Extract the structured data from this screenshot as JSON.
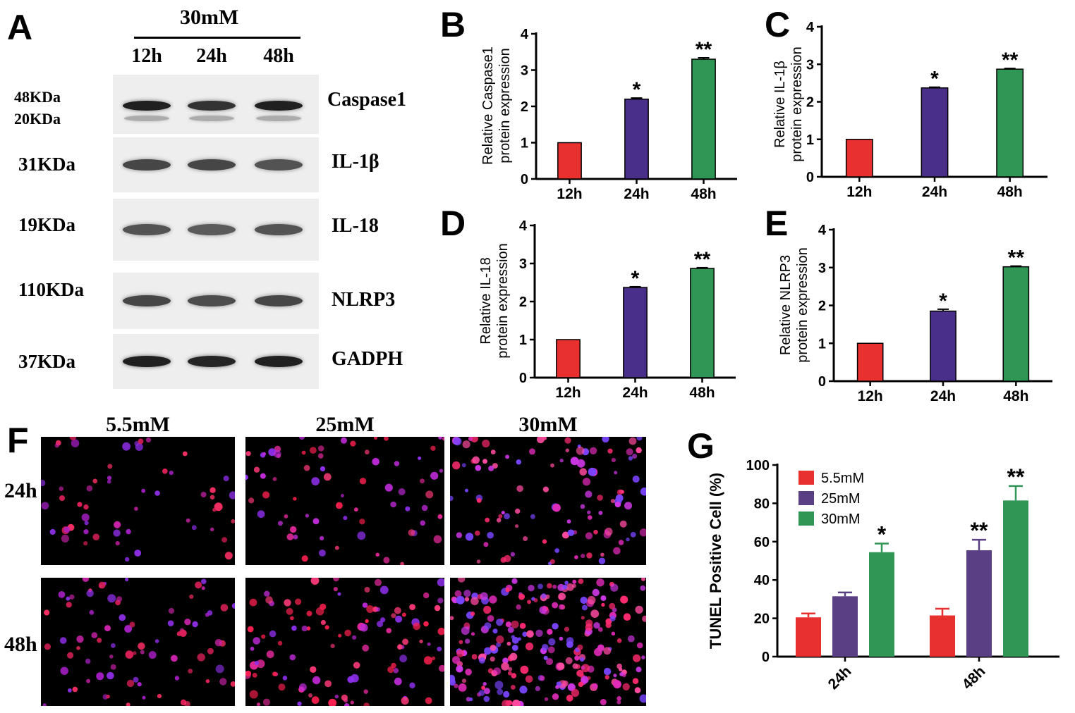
{
  "panel_a": {
    "letter": "A",
    "condition": "30mM",
    "time_labels": [
      "12h",
      "24h",
      "48h"
    ],
    "rows": [
      {
        "kda": [
          "48KDa",
          "20KDa"
        ],
        "protein": "Caspase1",
        "bands": [
          1.0,
          0.85,
          1.0
        ]
      },
      {
        "kda": [
          "31KDa"
        ],
        "protein": "IL-1β",
        "bands": [
          0.7,
          0.7,
          0.6
        ]
      },
      {
        "kda": [
          "19KDa"
        ],
        "protein": "IL-18",
        "bands": [
          0.6,
          0.55,
          0.6
        ]
      },
      {
        "kda": [
          "110KDa"
        ],
        "protein": "NLRP3",
        "bands": [
          0.7,
          0.65,
          0.7
        ]
      },
      {
        "kda": [
          "37KDa"
        ],
        "protein": "GADPH",
        "bands": [
          1.0,
          0.95,
          1.0
        ]
      }
    ]
  },
  "panel_f": {
    "letter": "F",
    "columns": [
      "5.5mM",
      "25mM",
      "30mM"
    ],
    "rows": [
      "24h",
      "48h"
    ]
  },
  "chart_data": [
    {
      "id": "B",
      "type": "bar",
      "categories": [
        "12h",
        "24h",
        "48h"
      ],
      "values": [
        1.0,
        2.2,
        3.3
      ],
      "errors": [
        0,
        0.03,
        0.04
      ],
      "annotations": [
        "",
        "*",
        "**"
      ],
      "ylabel_lines": [
        "Relative Caspase1",
        "protein expression"
      ],
      "ylim": [
        0,
        4
      ],
      "yticks": [
        0,
        1,
        2,
        3,
        4
      ],
      "colors": [
        "#e8312f",
        "#4a2f8a",
        "#2f9656"
      ]
    },
    {
      "id": "C",
      "type": "bar",
      "categories": [
        "12h",
        "24h",
        "48h"
      ],
      "values": [
        1.0,
        2.37,
        2.87
      ],
      "errors": [
        0,
        0.02,
        0.02
      ],
      "annotations": [
        "",
        "*",
        "**"
      ],
      "ylabel_lines": [
        "Relative IL-1β",
        "protein expression"
      ],
      "ylim": [
        0,
        4
      ],
      "yticks": [
        0,
        1,
        2,
        3,
        4
      ],
      "colors": [
        "#e8312f",
        "#4a2f8a",
        "#2f9656"
      ]
    },
    {
      "id": "D",
      "type": "bar",
      "categories": [
        "12h",
        "24h",
        "48h"
      ],
      "values": [
        1.0,
        2.37,
        2.87
      ],
      "errors": [
        0,
        0.02,
        0.02
      ],
      "annotations": [
        "",
        "*",
        "**"
      ],
      "ylabel_lines": [
        "Relative IL-18",
        "protein expression"
      ],
      "ylim": [
        0,
        4
      ],
      "yticks": [
        0,
        1,
        2,
        3,
        4
      ],
      "colors": [
        "#e8312f",
        "#4a2f8a",
        "#2f9656"
      ]
    },
    {
      "id": "E",
      "type": "bar",
      "categories": [
        "12h",
        "24h",
        "48h"
      ],
      "values": [
        1.0,
        1.85,
        3.02
      ],
      "errors": [
        0,
        0.05,
        0.02
      ],
      "annotations": [
        "",
        "*",
        "**"
      ],
      "ylabel_lines": [
        "Relative NLRP3",
        "protein expression"
      ],
      "ylim": [
        0,
        4
      ],
      "yticks": [
        0,
        1,
        2,
        3,
        4
      ],
      "colors": [
        "#e8312f",
        "#4a2f8a",
        "#2f9656"
      ]
    },
    {
      "id": "G",
      "type": "bar",
      "categories": [
        "24h",
        "48h"
      ],
      "series": [
        {
          "name": "5.5mM",
          "values": [
            20.5,
            21.5
          ],
          "errors": [
            2.0,
            3.5
          ],
          "annotations": [
            "",
            ""
          ],
          "color": "#e8312f"
        },
        {
          "name": "25mM",
          "values": [
            31.5,
            55.5
          ],
          "errors": [
            2.0,
            5.5
          ],
          "annotations": [
            "",
            "**"
          ],
          "color": "#5a3f85"
        },
        {
          "name": "30mM",
          "values": [
            54.5,
            81.5
          ],
          "errors": [
            4.5,
            7.5
          ],
          "annotations": [
            "*",
            "**"
          ],
          "color": "#2f9656"
        }
      ],
      "ylabel": "TUNEL Positive Cell (%)",
      "ylim": [
        0,
        100
      ],
      "yticks": [
        0,
        20,
        40,
        60,
        80,
        100
      ],
      "legend": "top-left"
    }
  ]
}
